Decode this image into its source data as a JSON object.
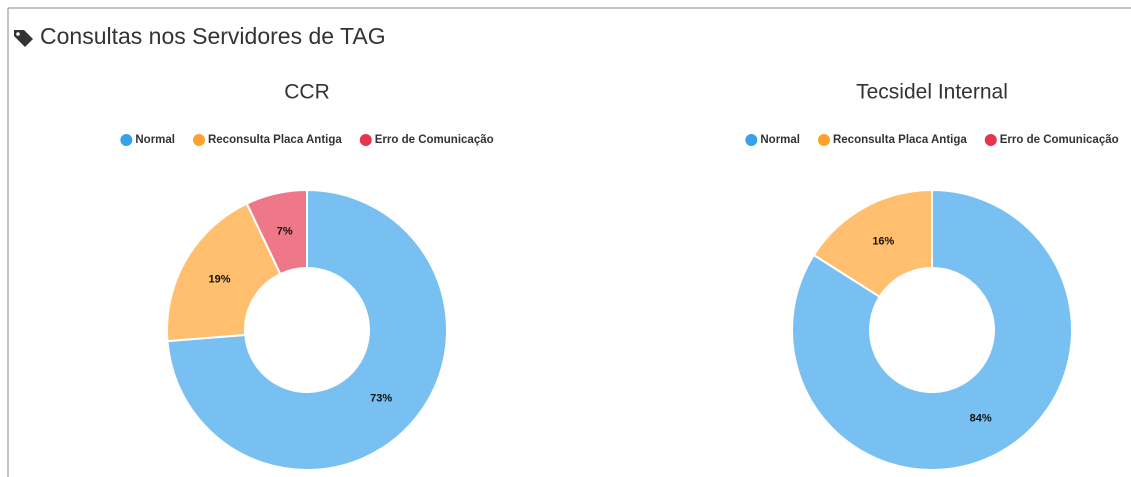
{
  "header": {
    "title": "Consultas nos Servidores de TAG"
  },
  "chart_data": [
    {
      "type": "doughnut",
      "title": "CCR",
      "categories": [
        "Normal",
        "Reconsulta Placa Antiga",
        "Erro de Comunicação"
      ],
      "values": [
        73,
        19,
        7
      ],
      "value_labels": [
        "73%",
        "19%",
        "7%"
      ],
      "colors": [
        "#36a2eb",
        "#ffa12a",
        "#e6364f"
      ]
    },
    {
      "type": "doughnut",
      "title": "Tecsidel Internal",
      "categories": [
        "Normal",
        "Reconsulta Placa Antiga",
        "Erro de Comunicação"
      ],
      "values": [
        84,
        16,
        0
      ],
      "value_labels": [
        "84%",
        "16%",
        null
      ],
      "colors": [
        "#36a2eb",
        "#ffa12a",
        "#e6364f"
      ]
    }
  ]
}
